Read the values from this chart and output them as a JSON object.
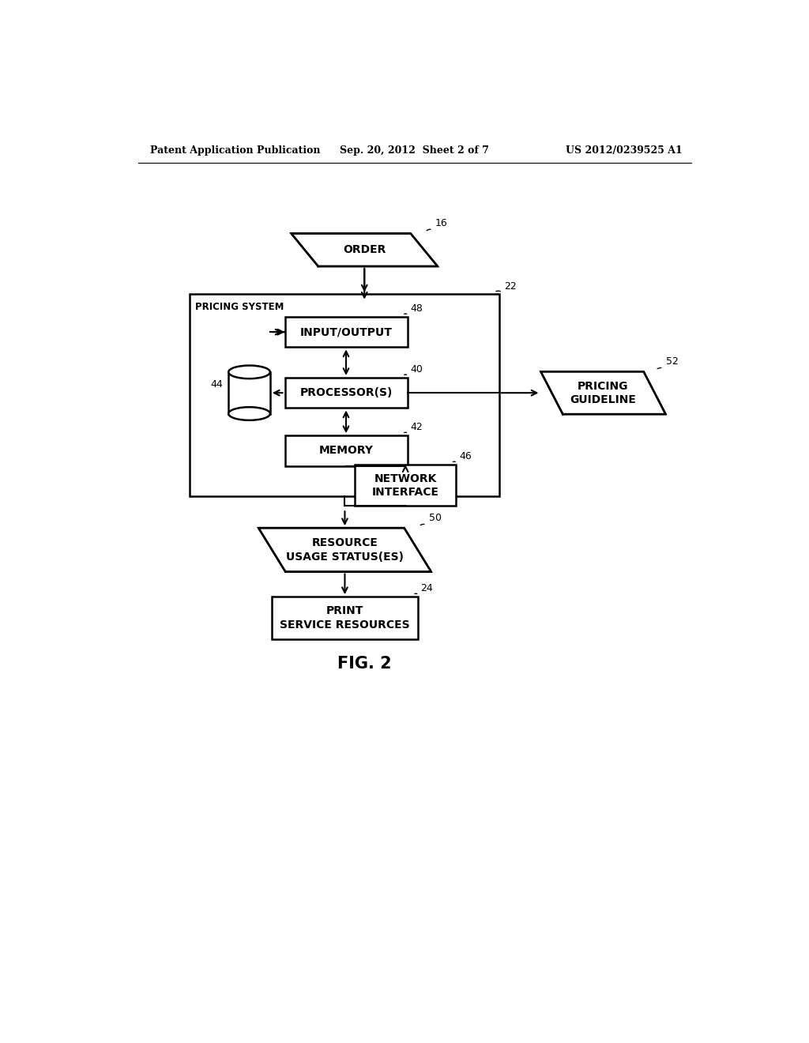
{
  "header_left": "Patent Application Publication",
  "header_center": "Sep. 20, 2012  Sheet 2 of 7",
  "header_right": "US 2012/0239525 A1",
  "fig_label": "FIG. 2",
  "bg_color": "#ffffff",
  "text_color": "#000000"
}
